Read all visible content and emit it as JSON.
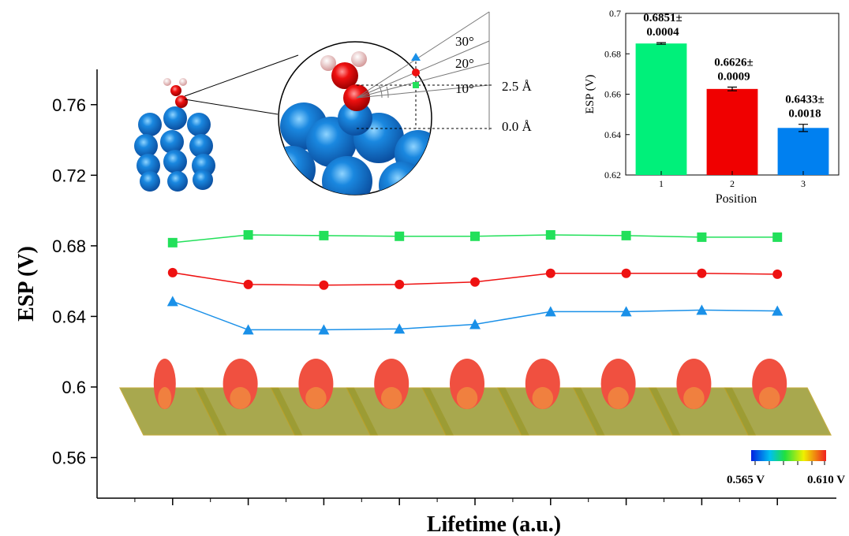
{
  "chart_data": [
    {
      "type": "line",
      "xlabel": "Lifetime (a.u.)",
      "ylabel": "ESP (V)",
      "categories": [
        null,
        null,
        null,
        null,
        null,
        null,
        null,
        null,
        null
      ],
      "series": [
        {
          "name": null,
          "color": "#22e05a",
          "marker": "square",
          "values": [
            0.6818,
            0.6862,
            0.6858,
            0.6854,
            0.6854,
            0.6862,
            0.6858,
            0.6849,
            0.6849
          ]
        },
        {
          "name": null,
          "color": "#ee1111",
          "marker": "circle",
          "values": [
            0.6648,
            0.6581,
            0.6577,
            0.6581,
            0.6595,
            0.6644,
            0.6644,
            0.6644,
            0.6639
          ]
        },
        {
          "name": null,
          "color": "#1a90e8",
          "marker": "triangle",
          "values": [
            0.6485,
            0.6324,
            0.6324,
            0.6329,
            0.6355,
            0.6427,
            0.6427,
            0.6436,
            0.6431
          ]
        }
      ],
      "ylim": [
        0.537,
        0.78
      ],
      "yticks": [
        0.56,
        0.6,
        0.64,
        0.68,
        0.72,
        0.76
      ],
      "annotations": [
        "30°",
        "20°",
        "10°",
        "2.5 Å",
        "0.0 Å"
      ],
      "colorbar_labels": [
        "0.565 V",
        "0.610 V"
      ]
    },
    {
      "type": "bar",
      "xlabel": "Position",
      "ylabel": "ESP (V)",
      "categories": [
        "1",
        "2",
        "3"
      ],
      "values": [
        0.6851,
        0.6626,
        0.6433
      ],
      "value_labels": [
        "0.6851±",
        "0.6626±",
        "0.6433±"
      ],
      "errors": [
        0.0004,
        0.0009,
        0.0018
      ],
      "colors": [
        "#00f07a",
        "#f00000",
        "#0080f0"
      ],
      "ylim": [
        0.62,
        0.7
      ],
      "yticks": [
        0.62,
        0.64,
        0.66,
        0.68,
        0.7
      ]
    }
  ]
}
